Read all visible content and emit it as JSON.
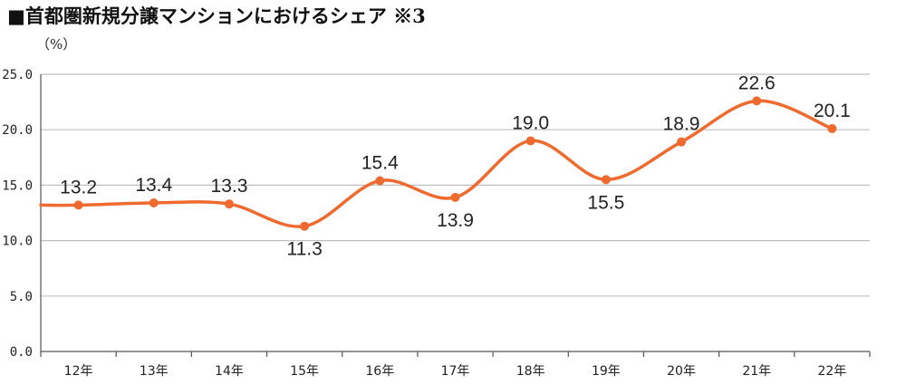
{
  "title": "■首都圏新規分譲マンションにおけるシェア ※3",
  "unit": "（%）",
  "colors": {
    "line": "#ee6a2e",
    "grid": "#bfbfbf",
    "axis": "#555555"
  },
  "chart_data": {
    "type": "line",
    "categories": [
      "12年",
      "13年",
      "14年",
      "15年",
      "16年",
      "17年",
      "18年",
      "19年",
      "20年",
      "21年",
      "22年"
    ],
    "values": [
      13.2,
      13.4,
      13.3,
      11.3,
      15.4,
      13.9,
      19.0,
      15.5,
      18.9,
      22.6,
      20.1
    ],
    "data_labels": [
      "13.2",
      "13.4",
      "13.3",
      "11.3",
      "15.4",
      "13.9",
      "19.0",
      "15.5",
      "18.9",
      "22.6",
      "20.1"
    ],
    "label_positions": [
      "above",
      "above",
      "above",
      "below",
      "above",
      "below",
      "above",
      "below",
      "above",
      "above",
      "above"
    ],
    "yticks": [
      "0.0",
      "5.0",
      "10.0",
      "15.0",
      "20.0",
      "25.0"
    ],
    "ylim": [
      0,
      25
    ],
    "grid": true,
    "smooth": true
  }
}
